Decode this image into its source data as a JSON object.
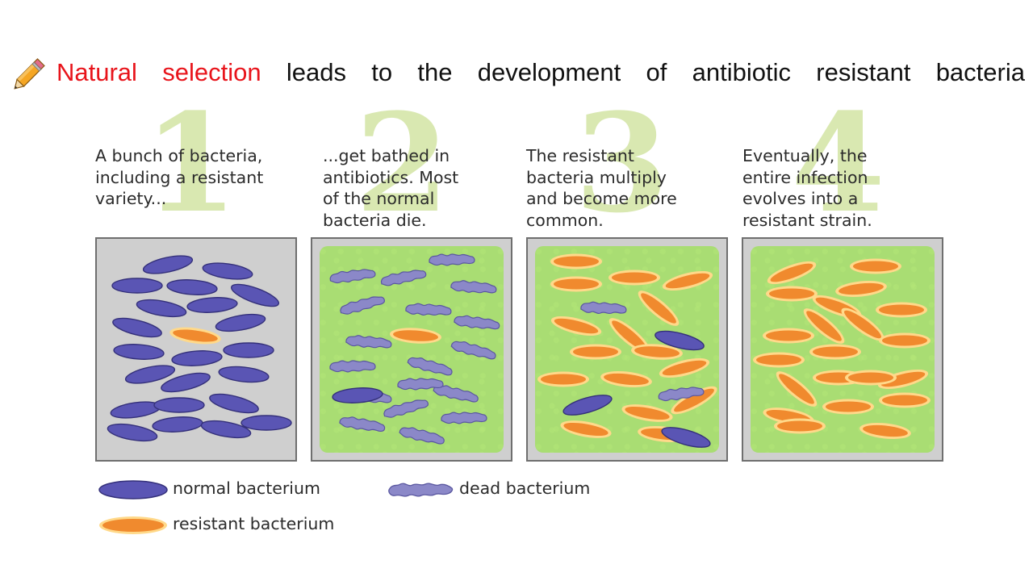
{
  "title": {
    "highlight": "Natural selection",
    "rest": "leads to the development of antibiotic resistant bacteria",
    "highlight_color": "#e8141b",
    "icon": "pencil-icon"
  },
  "steps": [
    {
      "number": "1",
      "text": "A bunch of bacteria,\nincluding a resistant\nvariety..."
    },
    {
      "number": "2",
      "text": "...get bathed in\nantibiotics. Most\nof the normal\nbacteria die."
    },
    {
      "number": "3",
      "text": "The resistant\nbacteria multiply\nand become more\ncommon."
    },
    {
      "number": "4",
      "text": "Eventually, the\nentire infection\nevolves into a\nresistant strain."
    }
  ],
  "legend": {
    "normal": "normal bacterium",
    "dead": "dead bacterium",
    "resistant": "resistant bacterium"
  },
  "colors": {
    "normal": "#5a55b4",
    "resistant": "#f08a2e",
    "dead": "#8b88c8",
    "background_grey": "#cfcfcf",
    "antibiotic_green": "#a9dd73",
    "step_number": "#d9e8b1"
  }
}
